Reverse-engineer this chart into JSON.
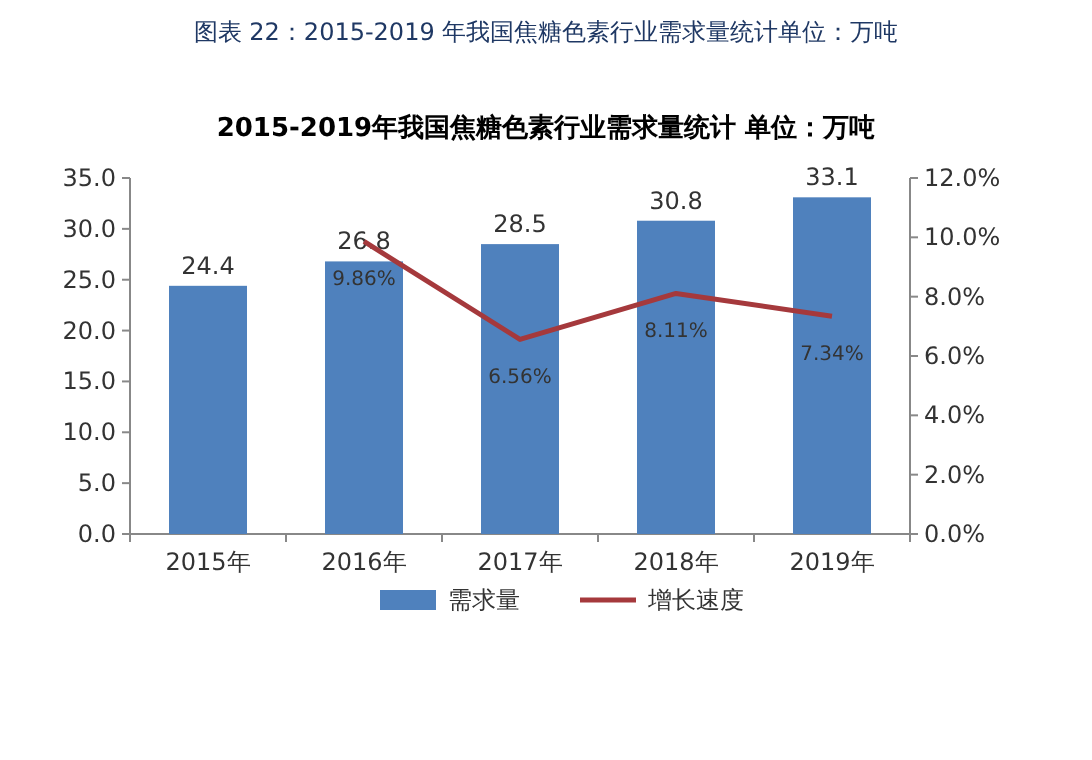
{
  "chart_data": {
    "type": "bar",
    "title": "2015-2019年我国焦糖色素行业需求量统计 单位：万吨",
    "annotations": [
      "图表 22：2015-2019 年我国焦糖色素行业需求量统计单位：万吨"
    ],
    "categories": [
      "2015年",
      "2016年",
      "2017年",
      "2018年",
      "2019年"
    ],
    "series": [
      {
        "name": "需求量",
        "color": "#4f81bd",
        "values": [
          24.4,
          26.8,
          28.5,
          30.8,
          33.1
        ],
        "value_labels": [
          "24.4",
          "26.8",
          "28.5",
          "30.8",
          "33.1"
        ]
      },
      {
        "name": "增长速度",
        "type": "line",
        "axis": "y2",
        "color": "#a5393c",
        "values": [
          null,
          9.86,
          6.56,
          8.11,
          7.34
        ],
        "value_labels": [
          null,
          "9.86%",
          "6.56%",
          "8.11%",
          "7.34%"
        ]
      }
    ],
    "ylim": [
      0,
      35
    ],
    "yticks": [
      {
        "value": 0,
        "label": "0.0"
      },
      {
        "value": 5,
        "label": "5.0"
      },
      {
        "value": 10,
        "label": "10.0"
      },
      {
        "value": 15,
        "label": "15.0"
      },
      {
        "value": 20,
        "label": "20.0"
      },
      {
        "value": 25,
        "label": "25.0"
      },
      {
        "value": 30,
        "label": "30.0"
      },
      {
        "value": 35,
        "label": "35.0"
      }
    ],
    "y2lim": [
      0,
      12
    ],
    "y2ticks": [
      {
        "value": 0,
        "label": "0.0%"
      },
      {
        "value": 2,
        "label": "2.0%"
      },
      {
        "value": 4,
        "label": "4.0%"
      },
      {
        "value": 6,
        "label": "6.0%"
      },
      {
        "value": 8,
        "label": "8.0%"
      },
      {
        "value": 10,
        "label": "10.0%"
      },
      {
        "value": 12,
        "label": "12.0%"
      }
    ],
    "legend": "bottom"
  }
}
